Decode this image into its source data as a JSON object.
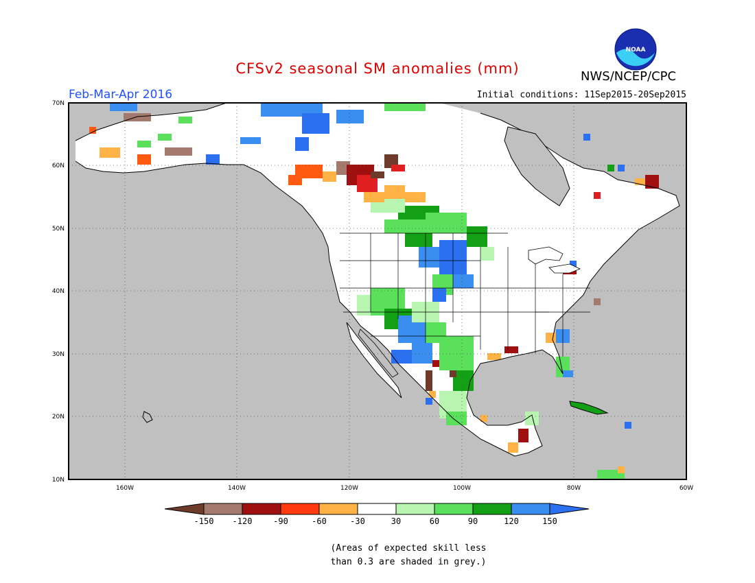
{
  "title": "CFSv2 seasonal SM anomalies (mm)",
  "agency": "NWS/NCEP/CPC",
  "logo_text": "NOAA",
  "period": "Feb-Mar-Apr 2016",
  "initial_conditions": "Initial conditions: 11Sep2015-20Sep2015",
  "note_line1": "(Areas of expected skill less",
  "note_line2": "than 0.3 are shaded in grey.)",
  "map": {
    "lon_range": [
      -172,
      -60
    ],
    "lat_range": [
      10,
      70
    ],
    "lat_labels": [
      "70N",
      "60N",
      "50N",
      "40N",
      "30N",
      "20N",
      "10N"
    ],
    "lon_labels": [
      "160W",
      "140W",
      "120W",
      "100W",
      "80W",
      "60W"
    ],
    "colors": {
      "no_skill": "#c0c0c0",
      "neutral": "#ffffff",
      "coastline": "#000000"
    }
  },
  "colorbar": {
    "labels": [
      "-150",
      "-120",
      "-90",
      "-60",
      "-30",
      "30",
      "60",
      "90",
      "120",
      "150"
    ],
    "colors": [
      "#6e3a2a",
      "#a57a6e",
      "#a01010",
      "#e02020",
      "#ff5a10",
      "#ffb347",
      "#ffffff",
      "#b8f5b0",
      "#5ae05a",
      "#14a014",
      "#3a8ef0",
      "#2a70f0"
    ]
  }
}
